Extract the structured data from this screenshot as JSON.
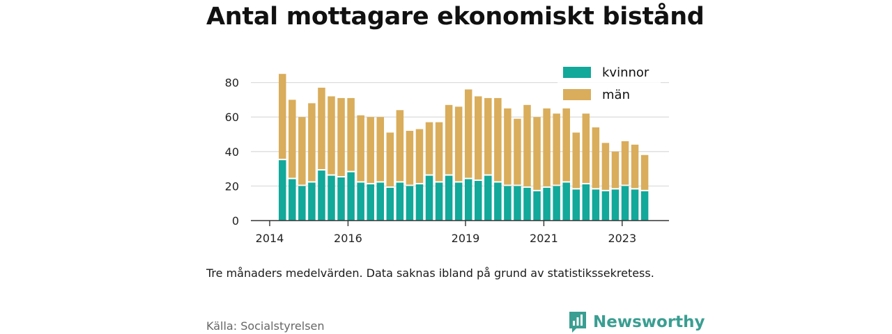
{
  "title": "Antal mottagare ekonomiskt bistånd",
  "note": "Tre månaders medelvärden. Data saknas ibland på grund av statistikssekretess.",
  "source": "Källa: Socialstyrelsen",
  "brand": {
    "name": "Newsworthy",
    "icon": "newsworthy-logo-icon",
    "color": "#3a9e92"
  },
  "chart_data": {
    "type": "bar",
    "stacked": true,
    "x_tick_labels": [
      "2014",
      "2016",
      "2019",
      "2021",
      "2023"
    ],
    "y_tick_labels": [
      "0",
      "20",
      "40",
      "60",
      "80"
    ],
    "ylim": [
      0,
      88
    ],
    "grid": "horizontal",
    "legend_position": "top-right",
    "series": [
      {
        "name": "kvinnor",
        "color": "#12a89a",
        "values": [
          35,
          24,
          20,
          22,
          29,
          26,
          25,
          28,
          22,
          21,
          22,
          19,
          22,
          20,
          21,
          26,
          22,
          26,
          22,
          24,
          23,
          26,
          22,
          20,
          20,
          19,
          17,
          19,
          20,
          22,
          18,
          21,
          18,
          17,
          18,
          20,
          18,
          17
        ]
      },
      {
        "name": "män",
        "color": "#d9ad5b",
        "values": [
          50,
          46,
          40,
          46,
          48,
          46,
          46,
          43,
          39,
          39,
          38,
          32,
          42,
          32,
          32,
          31,
          35,
          41,
          44,
          52,
          49,
          45,
          49,
          45,
          39,
          48,
          43,
          46,
          42,
          43,
          33,
          41,
          36,
          28,
          22,
          26,
          26,
          21
        ]
      }
    ]
  }
}
